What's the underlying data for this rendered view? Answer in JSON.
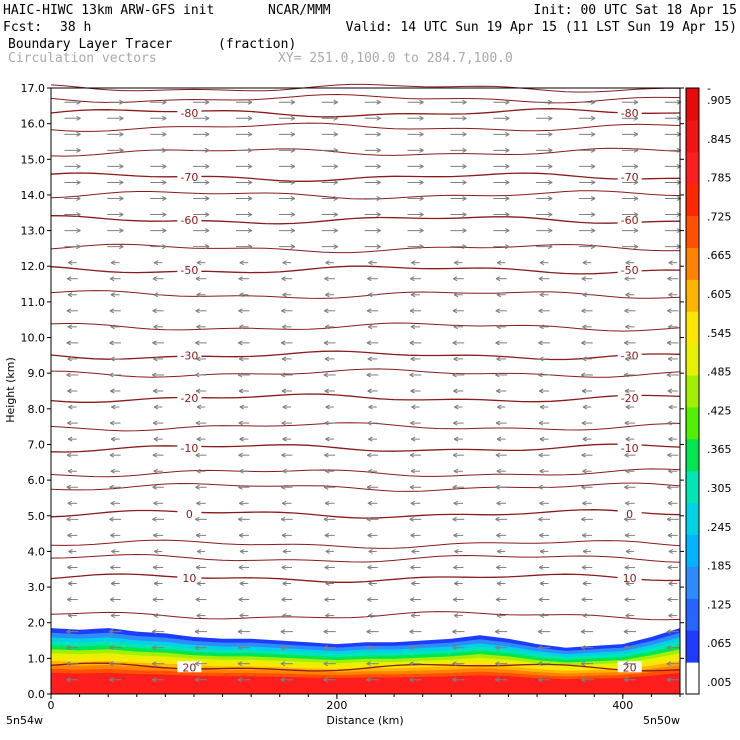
{
  "header": {
    "model": "HAIC-HIWC 13km ARW-GFS init",
    "center": "NCAR/MMM",
    "init": "Init: 00 UTC Sat 18 Apr 15",
    "fcst_label": "Fcst:",
    "fcst_value": "38 h",
    "valid": "Valid: 14 UTC Sun 19 Apr 15 (11 LST Sun 19 Apr 15)",
    "field": "Boundary Layer Tracer",
    "units": "(fraction)",
    "vectors": "Circulation vectors",
    "xy": "XY= 251.0,100.0 to 284.7,100.0"
  },
  "chart_data": {
    "type": "heatmap",
    "title": "Boundary Layer Tracer",
    "units": "(fraction)",
    "xlabel": "Distance (km)",
    "ylabel": "Height (km)",
    "xlim": [
      0,
      440
    ],
    "ylim": [
      0,
      17
    ],
    "x_ticks": [
      "0",
      "200",
      "400"
    ],
    "x_end_labels": [
      "5n54w",
      "5n50w"
    ],
    "y_ticks": [
      "0.0",
      "1.0",
      "2.0",
      "3.0",
      "4.0",
      "5.0",
      "6.0",
      "7.0",
      "8.0",
      "9.0",
      "10.0",
      "11.0",
      "12.0",
      "13.0",
      "14.0",
      "15.0",
      "16.0",
      "17.0"
    ],
    "colorbar": {
      "labels": [
        ".005",
        ".065",
        ".125",
        ".185",
        ".245",
        ".305",
        ".365",
        ".425",
        ".485",
        ".545",
        ".605",
        ".665",
        ".725",
        ".785",
        ".845",
        ".905",
        "-"
      ],
      "colors": [
        "#ffffff",
        "#1e3cff",
        "#2864ff",
        "#2d8cff",
        "#00b4ff",
        "#00d2e6",
        "#00e6b4",
        "#00e650",
        "#50f000",
        "#a0f000",
        "#e6f000",
        "#ffe600",
        "#ffb400",
        "#ff8200",
        "#ff5000",
        "#ff2800",
        "#ff1e1e",
        "#f01414",
        "#e60a0a"
      ]
    },
    "boundary_layer_top_km": [
      [
        0,
        1.85
      ],
      [
        20,
        1.8
      ],
      [
        40,
        1.85
      ],
      [
        60,
        1.75
      ],
      [
        80,
        1.7
      ],
      [
        100,
        1.6
      ],
      [
        120,
        1.55
      ],
      [
        140,
        1.55
      ],
      [
        160,
        1.5
      ],
      [
        180,
        1.45
      ],
      [
        200,
        1.4
      ],
      [
        220,
        1.45
      ],
      [
        240,
        1.45
      ],
      [
        260,
        1.5
      ],
      [
        280,
        1.55
      ],
      [
        300,
        1.65
      ],
      [
        320,
        1.55
      ],
      [
        340,
        1.4
      ],
      [
        360,
        1.3
      ],
      [
        380,
        1.35
      ],
      [
        400,
        1.4
      ],
      [
        420,
        1.6
      ],
      [
        440,
        1.85
      ]
    ],
    "temperature_contours_c": [
      {
        "value": -80,
        "height_km": 16.3,
        "label": "-80"
      },
      {
        "value": -70,
        "height_km": 14.5,
        "label": "-70"
      },
      {
        "value": -60,
        "height_km": 13.3,
        "label": "-60"
      },
      {
        "value": -50,
        "height_km": 11.9,
        "label": "-50"
      },
      {
        "value": -30,
        "height_km": 9.5,
        "label": "-30"
      },
      {
        "value": -20,
        "height_km": 8.3,
        "label": "-20"
      },
      {
        "value": -10,
        "height_km": 6.9,
        "label": "-10"
      },
      {
        "value": 0,
        "height_km": 5.05,
        "label": "0"
      },
      {
        "value": 10,
        "height_km": 3.25,
        "label": "10"
      },
      {
        "value": 20,
        "height_km": 0.75,
        "label": "20"
      }
    ],
    "unlabeled_contour_heights_km": [
      17.0,
      16.7,
      15.9,
      15.2,
      14.0,
      12.5,
      11.2,
      10.3,
      9.0,
      7.5,
      6.2,
      5.8,
      4.2,
      3.8,
      2.2
    ],
    "vector_direction": {
      "upper": "east",
      "lower": "west"
    }
  }
}
